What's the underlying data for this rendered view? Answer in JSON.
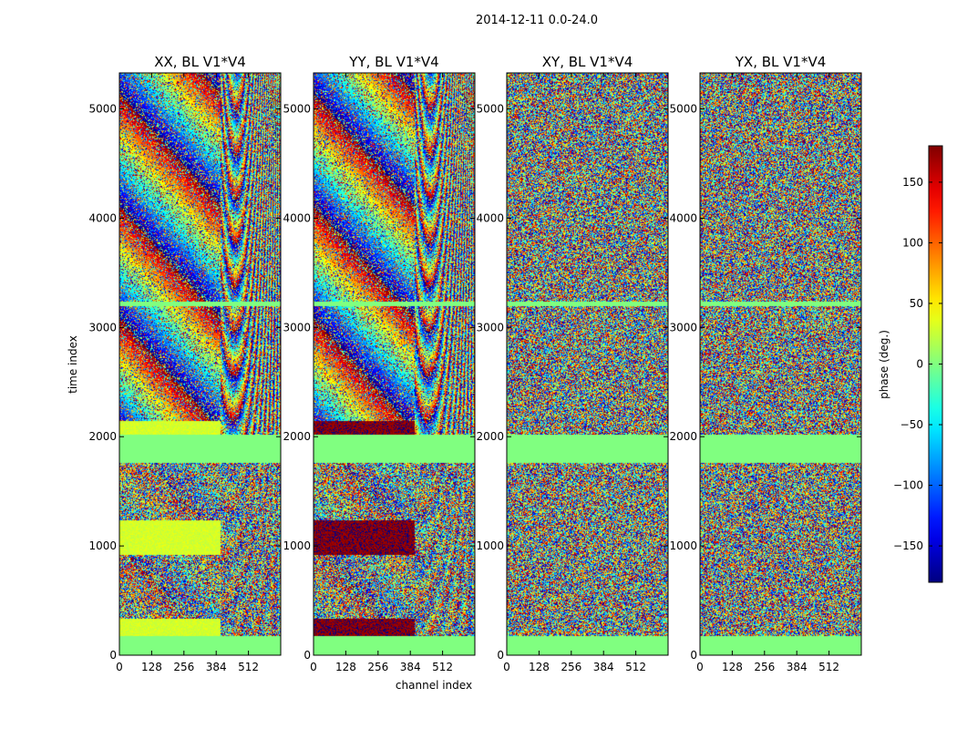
{
  "chart_data": {
    "type": "heatmap",
    "suptitle": "2014-12-11 0.0-24.0",
    "xlabel": "channel index",
    "ylabel": "time index",
    "xlim": [
      0,
      640
    ],
    "ylim": [
      0,
      5330
    ],
    "xticks": [
      0,
      128,
      256,
      384,
      512
    ],
    "yticks": [
      0,
      1000,
      2000,
      3000,
      4000,
      5000
    ],
    "panels": [
      {
        "title": "XX, BL V1*V4",
        "pol": "XX"
      },
      {
        "title": "YY, BL V1*V4",
        "pol": "YY"
      },
      {
        "title": "XY, BL V1*V4",
        "pol": "XY"
      },
      {
        "title": "YX, BL V1*V4",
        "pol": "YX"
      }
    ],
    "colorbar": {
      "label": "phase (deg.)",
      "range": [
        -180,
        180
      ],
      "ticks": [
        150,
        100,
        50,
        0,
        -50,
        -100,
        -150
      ],
      "tick_labels": [
        "150",
        "100",
        "50",
        "0",
        "−50",
        "−100",
        "−150"
      ],
      "colormap": "jet"
    },
    "flagged_bands": [
      {
        "t0": 0,
        "t1": 180
      },
      {
        "t0": 1760,
        "t1": 2020
      },
      {
        "t0": 3200,
        "t1": 3240
      }
    ],
    "calibrator_bands": [
      {
        "t0": 180,
        "t1": 340
      },
      {
        "t0": 920,
        "t1": 1240
      },
      {
        "t0": 2020,
        "t1": 2150
      }
    ]
  }
}
